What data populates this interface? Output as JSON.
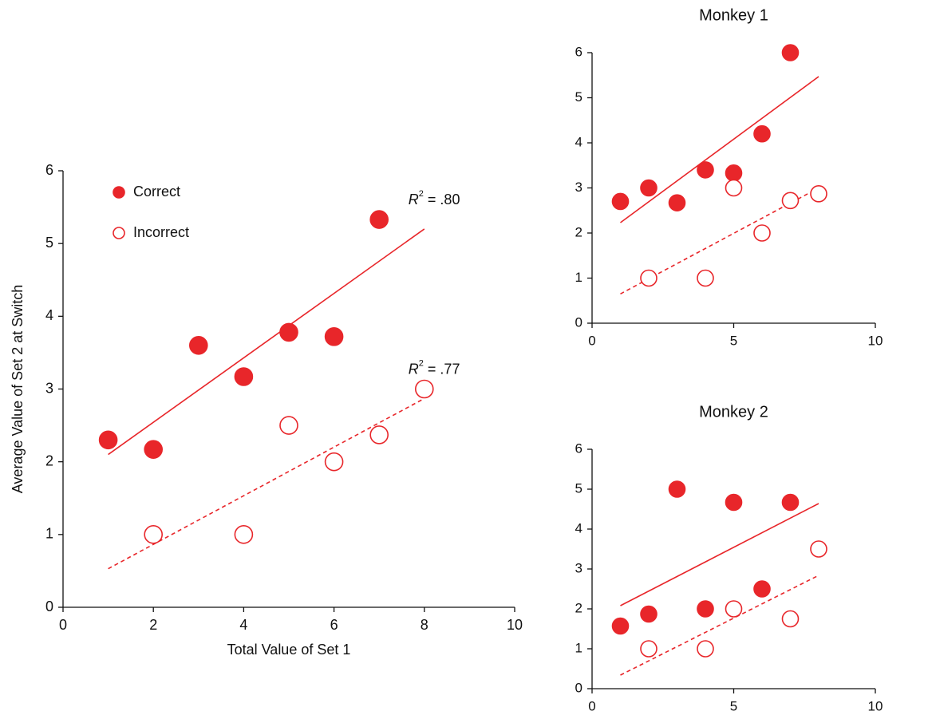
{
  "chart_data": [
    {
      "type": "scatter",
      "x_label": "Total Value of Set 1",
      "y_label": "Average Value of Set 2 at Switch",
      "xlim": [
        0,
        10
      ],
      "xticks": [
        0,
        2,
        4,
        6,
        8,
        10
      ],
      "ylim": [
        0,
        6
      ],
      "yticks": [
        0,
        1,
        2,
        3,
        4,
        5,
        6
      ],
      "legend": true,
      "series": [
        {
          "name": "Correct",
          "color": "#e8262a",
          "filled": true,
          "x": [
            1,
            2,
            3,
            4,
            5,
            6,
            7
          ],
          "values": [
            2.3,
            2.17,
            3.6,
            3.17,
            3.78,
            3.72,
            5.33
          ],
          "fit": {
            "dashed": false,
            "x": [
              1,
              8
            ],
            "values": [
              2.1,
              5.2
            ],
            "label": {
              "symbol": "R",
              "exponent": "2",
              "text": " = .80"
            }
          }
        },
        {
          "name": "Incorrect",
          "color": "#e8262a",
          "filled": false,
          "x": [
            2,
            4,
            5,
            6,
            7,
            8
          ],
          "values": [
            1,
            1,
            2.5,
            2,
            2.37,
            3
          ],
          "fit": {
            "dashed": true,
            "x": [
              1,
              8
            ],
            "values": [
              0.53,
              2.87
            ],
            "label": {
              "symbol": "R",
              "exponent": "2",
              "text": " = .77"
            }
          }
        }
      ]
    },
    {
      "type": "scatter",
      "title": "Monkey 1",
      "xlim": [
        0,
        10
      ],
      "xticks": [
        0,
        5,
        10
      ],
      "ylim": [
        0,
        6
      ],
      "yticks": [
        0,
        1,
        2,
        3,
        4,
        5,
        6
      ],
      "legend": false,
      "series": [
        {
          "color": "#e8262a",
          "filled": true,
          "x": [
            1,
            2,
            3,
            4,
            5,
            6,
            7
          ],
          "values": [
            2.7,
            3.0,
            2.67,
            3.4,
            3.33,
            4.2,
            6.0
          ],
          "fit": {
            "dashed": false,
            "x": [
              1,
              8
            ],
            "values": [
              2.23,
              5.47
            ]
          }
        },
        {
          "color": "#e8262a",
          "filled": false,
          "x": [
            2,
            4,
            5,
            6,
            7,
            8
          ],
          "values": [
            1,
            1,
            3,
            2,
            2.72,
            2.87
          ],
          "fit": {
            "dashed": true,
            "x": [
              1,
              8
            ],
            "values": [
              0.65,
              3.0
            ]
          }
        }
      ]
    },
    {
      "type": "scatter",
      "title": "Monkey 2",
      "xlim": [
        0,
        10
      ],
      "xticks": [
        0,
        5,
        10
      ],
      "ylim": [
        0,
        6
      ],
      "yticks": [
        0,
        1,
        2,
        3,
        4,
        5,
        6
      ],
      "legend": false,
      "series": [
        {
          "color": "#e8262a",
          "filled": true,
          "x": [
            1,
            2,
            3,
            4,
            5,
            6,
            7
          ],
          "values": [
            1.57,
            1.87,
            5.0,
            2.0,
            4.67,
            2.5,
            4.67
          ],
          "fit": {
            "dashed": false,
            "x": [
              1,
              8
            ],
            "values": [
              2.08,
              4.64
            ]
          }
        },
        {
          "color": "#e8262a",
          "filled": false,
          "x": [
            2,
            4,
            5,
            7,
            8
          ],
          "values": [
            1,
            1,
            2,
            1.75,
            3.5
          ],
          "fit": {
            "dashed": true,
            "x": [
              1,
              8
            ],
            "values": [
              0.34,
              2.84
            ]
          }
        }
      ]
    }
  ]
}
